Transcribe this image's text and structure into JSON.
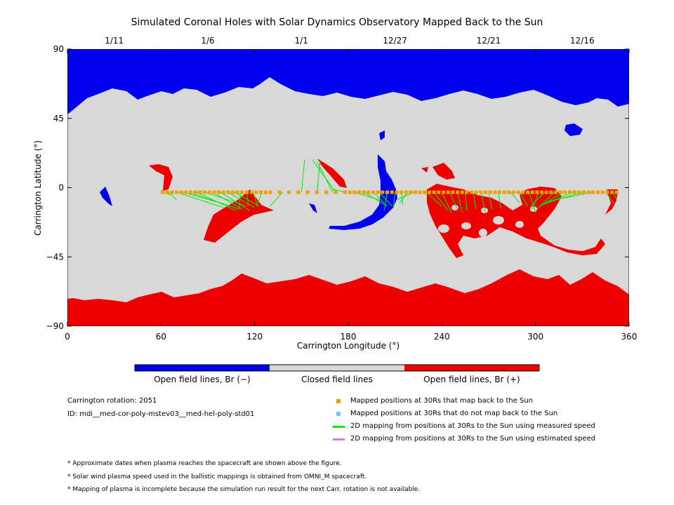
{
  "chart_data": {
    "type": "map",
    "title": "Simulated Coronal Holes with Solar Dynamics Observatory Mapped Back to the Sun",
    "xlabel": "Carrington Longitude (°)",
    "ylabel": "Carrington Latitude (°)",
    "xlim": [
      0,
      360
    ],
    "ylim": [
      -90,
      90
    ],
    "x_ticks": [
      "0",
      "60",
      "120",
      "180",
      "240",
      "300",
      "360"
    ],
    "y_ticks": [
      "90",
      "45",
      "0",
      "−45",
      "−90"
    ],
    "top_dates": [
      {
        "label": "1/11",
        "lon": 30
      },
      {
        "label": "1/6",
        "lon": 90
      },
      {
        "label": "1/1",
        "lon": 150
      },
      {
        "label": "12/27",
        "lon": 210
      },
      {
        "label": "12/21",
        "lon": 270
      },
      {
        "label": "12/16",
        "lon": 330
      }
    ],
    "regions": {
      "north_polar_hole_polarity": "Br (−)",
      "south_polar_hole_polarity": "Br (+)"
    },
    "mapped_positions_lon": [
      61,
      64,
      67,
      70,
      73,
      76,
      79,
      82,
      85,
      88,
      91,
      94,
      97,
      100,
      103,
      106,
      109,
      112,
      115,
      118,
      121,
      124,
      127,
      130,
      136,
      142,
      148,
      154,
      160,
      166,
      172,
      178,
      181,
      184,
      187,
      190,
      193,
      196,
      199,
      202,
      205,
      208,
      211,
      214,
      217,
      220,
      223,
      226,
      229,
      232,
      235,
      238,
      241,
      244,
      247,
      250,
      253,
      256,
      259,
      262,
      265,
      268,
      271,
      274,
      277,
      280,
      283,
      286,
      289,
      292,
      295,
      298,
      301,
      304,
      307,
      310,
      313,
      316,
      319,
      322,
      325,
      328,
      331,
      334,
      337,
      340,
      343,
      346,
      349,
      352
    ],
    "mapped_positions_lat": -3,
    "mapping_links": [
      [
        62,
        -3,
        66,
        -5
      ],
      [
        65,
        -3,
        70,
        -8
      ],
      [
        70,
        -3,
        100,
        -13
      ],
      [
        74,
        -3,
        105,
        -12
      ],
      [
        78,
        -3,
        110,
        -14
      ],
      [
        83,
        -3,
        108,
        -15
      ],
      [
        88,
        -3,
        115,
        -12
      ],
      [
        93,
        -3,
        112,
        -14
      ],
      [
        98,
        -3,
        117,
        -15
      ],
      [
        103,
        -3,
        120,
        -13
      ],
      [
        107,
        -3,
        123,
        -12
      ],
      [
        111,
        -3,
        110,
        -14
      ],
      [
        115,
        -3,
        116,
        -12
      ],
      [
        119,
        -3,
        122,
        -12
      ],
      [
        125,
        -3,
        121,
        -12
      ],
      [
        138,
        -3,
        130,
        -12
      ],
      [
        150,
        -3,
        152,
        18
      ],
      [
        160,
        -3,
        162,
        18
      ],
      [
        170,
        -3,
        160,
        17
      ],
      [
        172,
        -3,
        157,
        18
      ],
      [
        178,
        -3,
        170,
        -1
      ],
      [
        184,
        -3,
        200,
        -8
      ],
      [
        190,
        -3,
        205,
        -12
      ],
      [
        196,
        -3,
        203,
        -10
      ],
      [
        200,
        -3,
        208,
        -12
      ],
      [
        205,
        -3,
        203,
        -15
      ],
      [
        210,
        -3,
        209,
        -13
      ],
      [
        214,
        -3,
        215,
        -11
      ],
      [
        218,
        -3,
        213,
        -10
      ],
      [
        222,
        -3,
        211,
        -8
      ],
      [
        230,
        -3,
        240,
        -12
      ],
      [
        235,
        -3,
        244,
        -15
      ],
      [
        240,
        -3,
        246,
        -16
      ],
      [
        245,
        -3,
        250,
        -14
      ],
      [
        250,
        -3,
        253,
        -16
      ],
      [
        255,
        -3,
        256,
        -15
      ],
      [
        260,
        -3,
        262,
        -14
      ],
      [
        265,
        -3,
        268,
        -16
      ],
      [
        270,
        -3,
        272,
        -14
      ],
      [
        276,
        -3,
        278,
        -14
      ],
      [
        284,
        -3,
        290,
        -10
      ],
      [
        290,
        -3,
        295,
        -12
      ],
      [
        296,
        -3,
        300,
        -16
      ],
      [
        302,
        -3,
        298,
        -14
      ],
      [
        306,
        -3,
        297,
        -12
      ],
      [
        312,
        -3,
        301,
        -14
      ],
      [
        318,
        -3,
        303,
        -12
      ],
      [
        324,
        -3,
        305,
        -11
      ],
      [
        330,
        -3,
        307,
        -10
      ],
      [
        336,
        -3,
        308,
        -9
      ],
      [
        345,
        -3,
        350,
        -10
      ],
      [
        350,
        -3,
        352,
        -8
      ]
    ]
  },
  "colorbar": {
    "colors": {
      "open_neg": "#0000ee",
      "closed": "#d8d8d8",
      "open_pos": "#ee0000"
    },
    "labels": [
      "Open field lines, Br (−)",
      "Closed field lines",
      "Open field lines, Br (+)"
    ]
  },
  "info": {
    "rotation": "Carrington rotation: 2051",
    "id": "ID: mdi__med-cor-poly-mstev03__med-hel-poly-std01"
  },
  "legend": {
    "items": [
      {
        "label": "Mapped positions at 30Rs that map back to the Sun",
        "color": "#f0a000",
        "shape": "square"
      },
      {
        "label": "Mapped positions at 30Rs that do not map back to the Sun",
        "color": "#80c0f0",
        "shape": "square"
      },
      {
        "label": "2D mapping from positions at 30Rs to the Sun using measured speed",
        "color": "#00ee00",
        "shape": "line"
      },
      {
        "label": "2D mapping from positions at 30Rs to the Sun using estimated speed",
        "color": "#c080f0",
        "shape": "line"
      }
    ]
  },
  "notes": [
    "* Approximate dates when plasma reaches the spacecraft are shown above the figure.",
    "* Solar wind plasma speed used in the ballistic mappings is obtained from OMNI_M spacecraft.",
    "* Mapping of plasma is incomplete because the simulation run result for the next Carr. rotation is not available."
  ]
}
